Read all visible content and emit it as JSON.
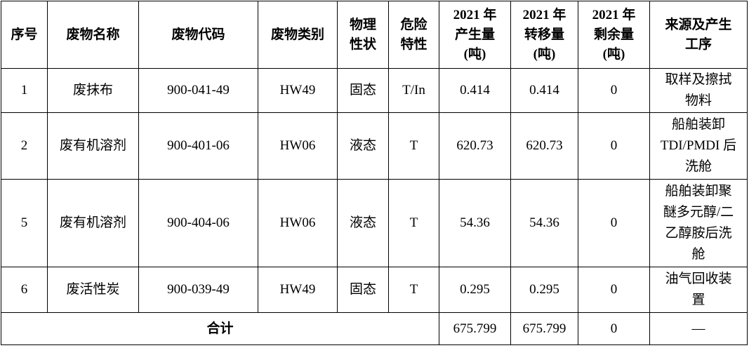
{
  "table": {
    "header": [
      [
        "序号"
      ],
      [
        "废物名称"
      ],
      [
        "废物代码"
      ],
      [
        "废物类别"
      ],
      [
        "物理",
        "性状"
      ],
      [
        "危险",
        "特性"
      ],
      [
        "2021 年",
        "产生量",
        "(吨)"
      ],
      [
        "2021 年",
        "转移量",
        "(吨)"
      ],
      [
        "2021 年",
        "剩余量",
        "(吨)"
      ],
      [
        "来源及产生",
        "工序"
      ]
    ],
    "rows": [
      [
        "1",
        "废抹布",
        "900-041-49",
        "HW49",
        "固态",
        "T/In",
        "0.414",
        "0.414",
        "0",
        [
          "取样及擦拭",
          "物料"
        ]
      ],
      [
        "2",
        "废有机溶剂",
        "900-401-06",
        "HW06",
        "液态",
        "T",
        "620.73",
        "620.73",
        "0",
        [
          "船舶装卸",
          "TDI/PMDI 后",
          "洗舱"
        ]
      ],
      [
        "5",
        "废有机溶剂",
        "900-404-06",
        "HW06",
        "液态",
        "T",
        "54.36",
        "54.36",
        "0",
        [
          "船舶装卸聚",
          "醚多元醇/二",
          "乙醇胺后洗",
          "舱"
        ]
      ],
      [
        "6",
        "废活性炭",
        "900-039-49",
        "HW49",
        "固态",
        "T",
        "0.295",
        "0.295",
        "0",
        [
          "油气回收装",
          "置"
        ]
      ]
    ],
    "total": {
      "label": "合计",
      "values": [
        "675.799",
        "675.799",
        "0",
        "—"
      ]
    }
  }
}
